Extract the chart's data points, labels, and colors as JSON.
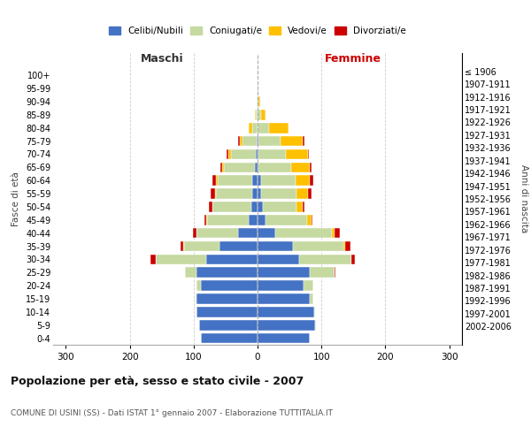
{
  "age_groups": [
    "0-4",
    "5-9",
    "10-14",
    "15-19",
    "20-24",
    "25-29",
    "30-34",
    "35-39",
    "40-44",
    "45-49",
    "50-54",
    "55-59",
    "60-64",
    "65-69",
    "70-74",
    "75-79",
    "80-84",
    "85-89",
    "90-94",
    "95-99",
    "100+"
  ],
  "birth_years": [
    "2002-2006",
    "1997-2001",
    "1992-1996",
    "1987-1991",
    "1982-1986",
    "1977-1981",
    "1972-1976",
    "1967-1971",
    "1962-1966",
    "1957-1961",
    "1952-1956",
    "1947-1951",
    "1942-1946",
    "1937-1941",
    "1932-1936",
    "1927-1931",
    "1922-1926",
    "1917-1921",
    "1912-1916",
    "1907-1911",
    "≤ 1906"
  ],
  "male_celibe": [
    88,
    92,
    95,
    95,
    88,
    95,
    80,
    60,
    30,
    14,
    10,
    8,
    8,
    4,
    3,
    1,
    0,
    0,
    0,
    0,
    0
  ],
  "male_coniugato": [
    0,
    0,
    0,
    2,
    8,
    18,
    80,
    55,
    65,
    65,
    60,
    57,
    55,
    48,
    38,
    22,
    9,
    3,
    1,
    0,
    0
  ],
  "male_vedovo": [
    0,
    0,
    0,
    0,
    0,
    0,
    0,
    1,
    1,
    1,
    1,
    1,
    2,
    3,
    5,
    5,
    5,
    1,
    0,
    0,
    0
  ],
  "male_divorziato": [
    0,
    0,
    0,
    0,
    0,
    1,
    8,
    5,
    5,
    3,
    5,
    8,
    5,
    3,
    2,
    2,
    0,
    0,
    0,
    0,
    0
  ],
  "female_nubile": [
    82,
    90,
    88,
    82,
    72,
    82,
    65,
    55,
    28,
    12,
    8,
    6,
    5,
    2,
    2,
    1,
    0,
    0,
    0,
    0,
    0
  ],
  "female_coniugata": [
    0,
    2,
    2,
    5,
    15,
    38,
    82,
    80,
    88,
    65,
    53,
    55,
    55,
    50,
    42,
    35,
    18,
    5,
    2,
    1,
    0
  ],
  "female_vedova": [
    0,
    0,
    0,
    0,
    0,
    0,
    0,
    2,
    5,
    8,
    10,
    18,
    22,
    30,
    35,
    35,
    30,
    8,
    2,
    0,
    0
  ],
  "female_divorziata": [
    0,
    0,
    0,
    0,
    0,
    2,
    5,
    8,
    8,
    1,
    3,
    5,
    5,
    2,
    2,
    2,
    0,
    0,
    0,
    0,
    0
  ],
  "colors": {
    "celibe": "#4472c4",
    "coniugato": "#c5d9a0",
    "vedovo": "#ffc000",
    "divorziato": "#cc0000"
  },
  "xlim": 320,
  "title": "Popolazione per età, sesso e stato civile - 2007",
  "subtitle": "COMUNE DI USINI (SS) - Dati ISTAT 1° gennaio 2007 - Elaborazione TUTTITALIA.IT",
  "ylabel_left": "Fasce di età",
  "ylabel_right": "Anni di nascita",
  "legend_labels": [
    "Celibi/Nubili",
    "Coniugati/e",
    "Vedovi/e",
    "Divorziati/e"
  ],
  "background_color": "#ffffff",
  "maschi_color": "#333333",
  "femmine_color": "#cc0000"
}
